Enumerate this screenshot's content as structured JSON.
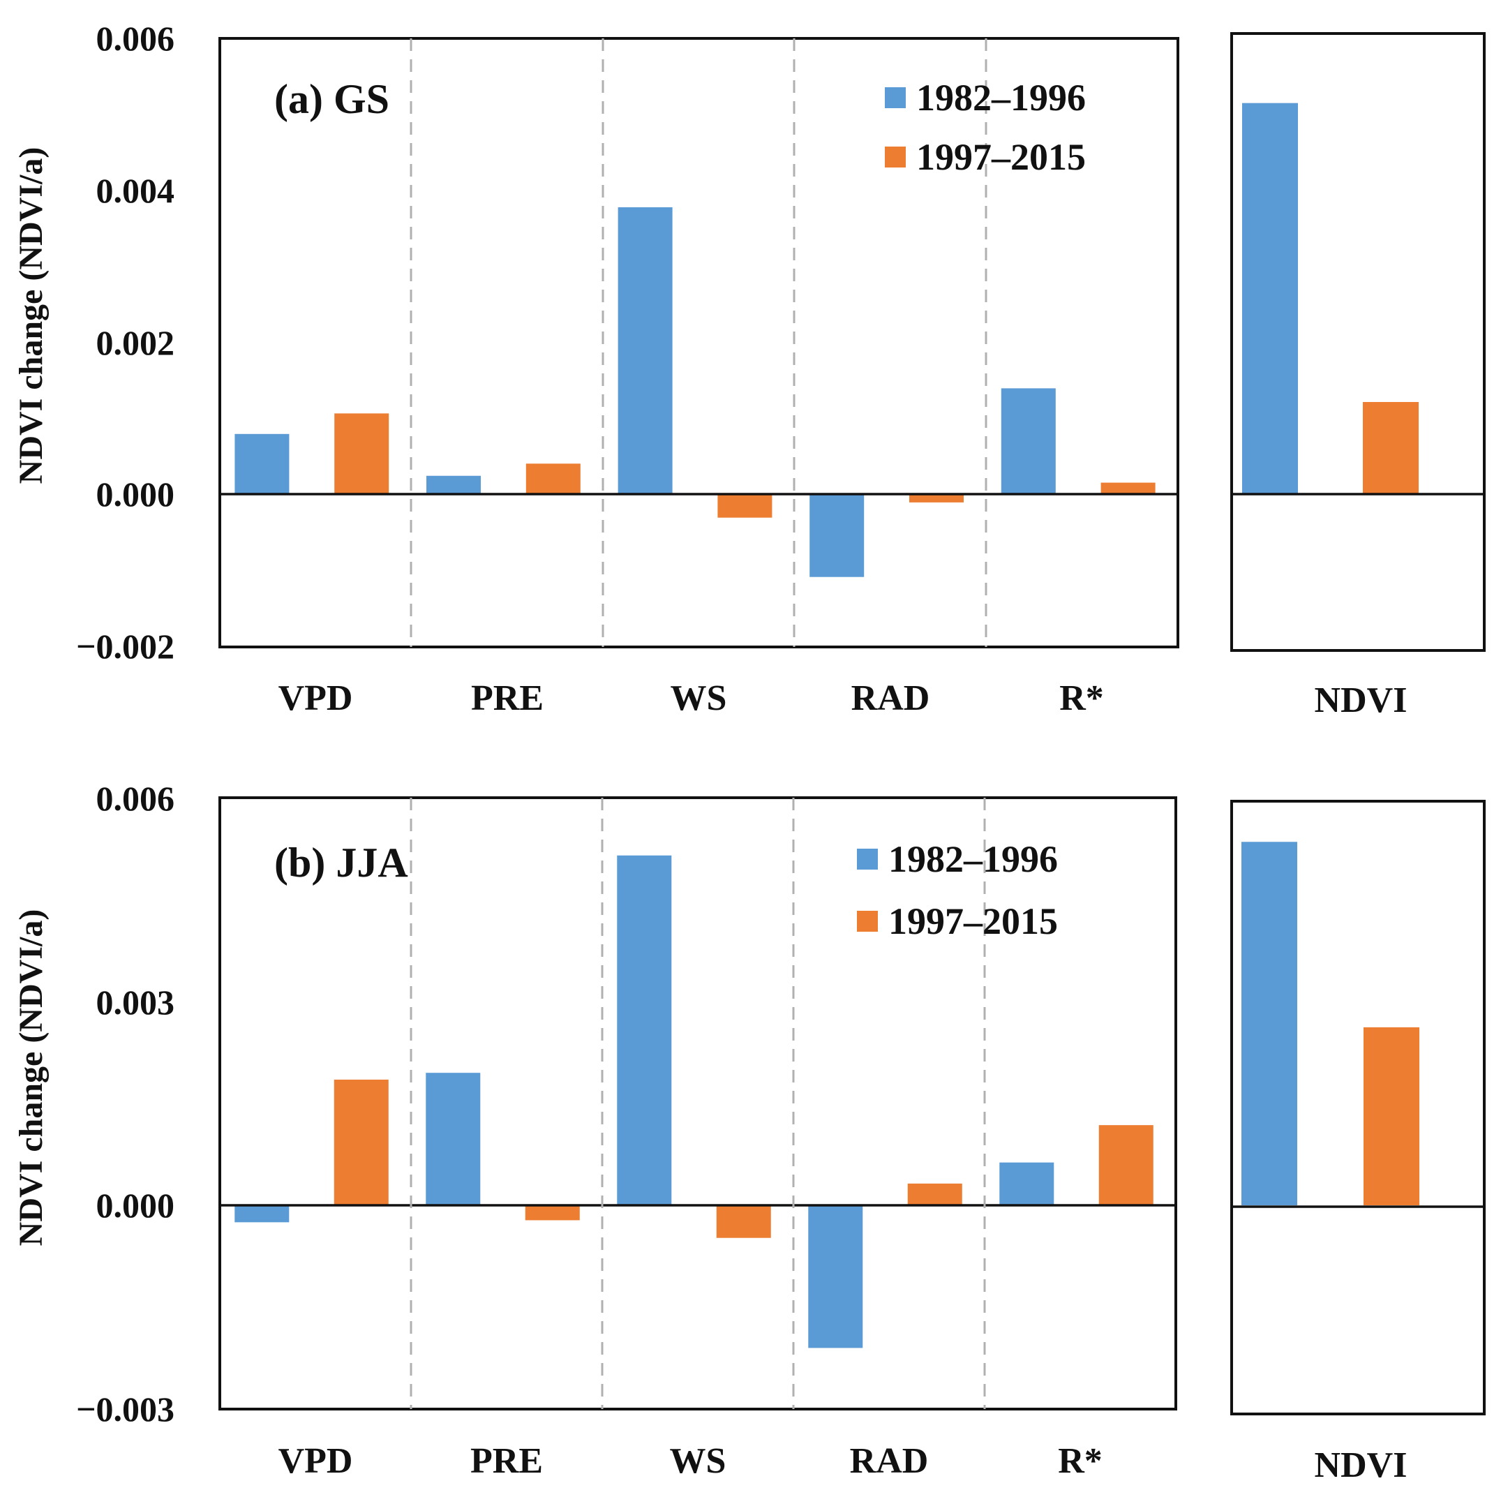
{
  "chart_data": [
    {
      "type": "bar",
      "panel_title": "(a) GS",
      "ylabel": "NDVI change (NDVI/a)",
      "ylim": [
        -0.002,
        0.006
      ],
      "yticks": [
        "0.006",
        "0.004",
        "0.002",
        "0.000",
        "−0.002"
      ],
      "ytick_values": [
        0.006,
        0.004,
        0.002,
        0.0,
        -0.002
      ],
      "categories": [
        "VPD",
        "PRE",
        "WS",
        "RAD",
        "R*"
      ],
      "series": [
        {
          "name": "1982–1996",
          "color": "#5b9bd5",
          "values": [
            0.0008,
            0.00025,
            0.00378,
            -0.00108,
            0.0014
          ]
        },
        {
          "name": "1997–2015",
          "color": "#ed7d31",
          "values": [
            0.00107,
            0.00041,
            -0.0003,
            -0.0001,
            0.00016
          ]
        }
      ],
      "legend_position": "top-right",
      "side_panel": {
        "category": "NDVI",
        "values": [
          0.00515,
          0.00122
        ]
      }
    },
    {
      "type": "bar",
      "panel_title": "(b) JJA",
      "ylabel": "NDVI change (NDVI/a)",
      "ylim": [
        -0.003,
        0.006
      ],
      "yticks": [
        "0.006",
        "0.003",
        "0.000",
        "−0.003"
      ],
      "ytick_values": [
        0.006,
        0.003,
        0.0,
        -0.003
      ],
      "categories": [
        "VPD",
        "PRE",
        "WS",
        "RAD",
        "R*"
      ],
      "series": [
        {
          "name": "1982–1996",
          "color": "#5b9bd5",
          "values": [
            -0.00025,
            0.00195,
            0.00515,
            -0.0021,
            0.00063
          ]
        },
        {
          "name": "1997–2015",
          "color": "#ed7d31",
          "values": [
            0.00185,
            -0.00022,
            -0.00048,
            0.00032,
            0.00118
          ]
        }
      ],
      "legend_position": "top-right",
      "side_panel": {
        "category": "NDVI",
        "values": [
          0.00535,
          0.00262
        ]
      }
    }
  ]
}
